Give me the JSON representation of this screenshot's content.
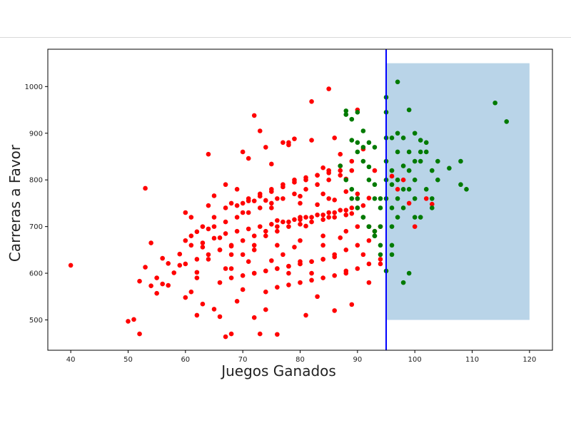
{
  "chart_data": {
    "type": "scatter",
    "title": "",
    "xlabel": "Juegos Ganados",
    "ylabel": "Carreras a Favor",
    "xlim": [
      36,
      124
    ],
    "ylim": [
      435,
      1080
    ],
    "xticks": [
      40,
      50,
      60,
      70,
      80,
      90,
      100,
      110,
      120
    ],
    "yticks": [
      500,
      600,
      700,
      800,
      900,
      1000
    ],
    "grid": false,
    "colors": {
      "red": "#ff0000",
      "green": "#007a00",
      "vline": "#0000ff",
      "region": "#b9d4e8"
    },
    "vline": {
      "x": 95
    },
    "shaded_region": {
      "x": [
        95,
        120
      ],
      "y": [
        500,
        1050
      ]
    },
    "series": [
      {
        "color": "red",
        "x": [
          40,
          50,
          51,
          52,
          52,
          53,
          53,
          54,
          54,
          55,
          55,
          56,
          56,
          57,
          57,
          58,
          59,
          59,
          60,
          60,
          60,
          61,
          61,
          61,
          62,
          62,
          62,
          63,
          63,
          64,
          64,
          65,
          65,
          66,
          66,
          67,
          67,
          67,
          68,
          68,
          69,
          69,
          70,
          70,
          71,
          71,
          72,
          72,
          73,
          73,
          74,
          74,
          75,
          75,
          76,
          76,
          77,
          77,
          78,
          78,
          79,
          79,
          80,
          80,
          81,
          81,
          82,
          82,
          83,
          83,
          84,
          84,
          85,
          85,
          86,
          86,
          87,
          87,
          88,
          88,
          89,
          89,
          90,
          90,
          91,
          91,
          92,
          92,
          93,
          93,
          94,
          94,
          96,
          97,
          98,
          99,
          100,
          102,
          103,
          62,
          64,
          66,
          68,
          70,
          72,
          74,
          76,
          78,
          80,
          82,
          84,
          86,
          88,
          71,
          73,
          75,
          77,
          79,
          81,
          83,
          85,
          87,
          63,
          65,
          67,
          69,
          71,
          73,
          75,
          77,
          79,
          81,
          83,
          85,
          87,
          89,
          60,
          62,
          64,
          66,
          68,
          70,
          72,
          74,
          76,
          78,
          80,
          82,
          84,
          86,
          88,
          90,
          72,
          74,
          76,
          78,
          80,
          82,
          84,
          86,
          88,
          90,
          92,
          66,
          68,
          70,
          72,
          74,
          76,
          78,
          80,
          82,
          84,
          86,
          61,
          63,
          65,
          67,
          69,
          71,
          73,
          75,
          77,
          79,
          81,
          83,
          85,
          87,
          89,
          91,
          70,
          75,
          80,
          85,
          90,
          65,
          67,
          69,
          71,
          73,
          75,
          77,
          79,
          81,
          83,
          85,
          87,
          89,
          74,
          76,
          78,
          80,
          82,
          84,
          86,
          88,
          90,
          92,
          94,
          68,
          72,
          76,
          80,
          84,
          88,
          92,
          64,
          68,
          72,
          76,
          80,
          84,
          88,
          70,
          74,
          78,
          82,
          86,
          90
        ],
        "y": [
          617,
          497,
          501,
          470,
          583,
          782,
          613,
          665,
          573,
          557,
          590,
          632,
          577,
          621,
          574,
          601,
          617,
          641,
          548,
          670,
          730,
          560,
          680,
          720,
          510,
          602,
          689,
          534,
          656,
          855,
          695,
          523,
          766,
          507,
          676,
          464,
          610,
          790,
          470,
          658,
          540,
          780,
          565,
          750,
          846,
          625,
          505,
          938,
          470,
          905,
          522,
          756,
          627,
          834,
          469,
          713,
          880,
          640,
          600,
          875,
          656,
          888,
          720,
          625,
          510,
          701,
          968,
          600,
          550,
          747,
          826,
          660,
          995,
          720,
          520,
          757,
          676,
          855,
          605,
          802,
          533,
          728,
          950,
          760,
          640,
          866,
          580,
          761,
          690,
          820,
          620,
          700,
          808,
          780,
          800,
          750,
          700,
          760,
          748,
          590,
          630,
          650,
          610,
          640,
          660,
          680,
          690,
          700,
          705,
          710,
          715,
          720,
          725,
          760,
          770,
          780,
          790,
          795,
          800,
          810,
          815,
          820,
          700,
          720,
          740,
          745,
          755,
          765,
          775,
          785,
          800,
          805,
          810,
          820,
          830,
          840,
          620,
          630,
          640,
          650,
          660,
          670,
          680,
          690,
          700,
          710,
          715,
          720,
          725,
          730,
          735,
          740,
          600,
          605,
          610,
          615,
          620,
          625,
          630,
          640,
          650,
          660,
          670,
          580,
          590,
          595,
          600,
          605,
          610,
          615,
          620,
          625,
          630,
          635,
          660,
          665,
          675,
          685,
          690,
          695,
          700,
          705,
          710,
          715,
          720,
          725,
          730,
          735,
          740,
          745,
          730,
          740,
          750,
          760,
          770,
          700,
          710,
          720,
          730,
          740,
          750,
          760,
          770,
          780,
          790,
          800,
          810,
          820,
          560,
          570,
          575,
          580,
          585,
          590,
          595,
          600,
          610,
          620,
          630,
          640,
          650,
          660,
          670,
          680,
          690,
          700,
          745,
          750,
          755,
          760,
          765,
          770,
          775,
          860,
          870,
          880,
          885,
          890,
          700
        ]
      },
      {
        "color": "green",
        "x": [
          88,
          88,
          89,
          89,
          90,
          90,
          90,
          91,
          91,
          91,
          92,
          92,
          92,
          93,
          93,
          93,
          93,
          94,
          94,
          94,
          95,
          95,
          95,
          95,
          95,
          95,
          95,
          96,
          96,
          96,
          96,
          96,
          96,
          96,
          97,
          97,
          97,
          97,
          97,
          97,
          98,
          98,
          98,
          98,
          98,
          99,
          99,
          99,
          99,
          99,
          100,
          100,
          100,
          100,
          100,
          101,
          101,
          101,
          101,
          102,
          102,
          102,
          103,
          103,
          103,
          104,
          104,
          106,
          108,
          108,
          109,
          114,
          116,
          87,
          88,
          89,
          90,
          91,
          92,
          93,
          94,
          89,
          90,
          91,
          92,
          93,
          94
        ],
        "y": [
          948,
          940,
          930,
          885,
          945,
          880,
          860,
          905,
          870,
          840,
          880,
          828,
          800,
          870,
          790,
          760,
          680,
          760,
          740,
          700,
          977,
          945,
          890,
          840,
          800,
          760,
          605,
          890,
          820,
          790,
          740,
          700,
          660,
          640,
          1010,
          900,
          860,
          800,
          760,
          720,
          580,
          890,
          830,
          780,
          740,
          600,
          950,
          860,
          820,
          780,
          720,
          900,
          840,
          800,
          760,
          720,
          885,
          860,
          840,
          780,
          880,
          860,
          820,
          760,
          740,
          840,
          800,
          825,
          840,
          790,
          780,
          965,
          925,
          830,
          800,
          780,
          760,
          720,
          700,
          690,
          640,
          760,
          740,
          720,
          700,
          680,
          660
        ]
      }
    ]
  }
}
